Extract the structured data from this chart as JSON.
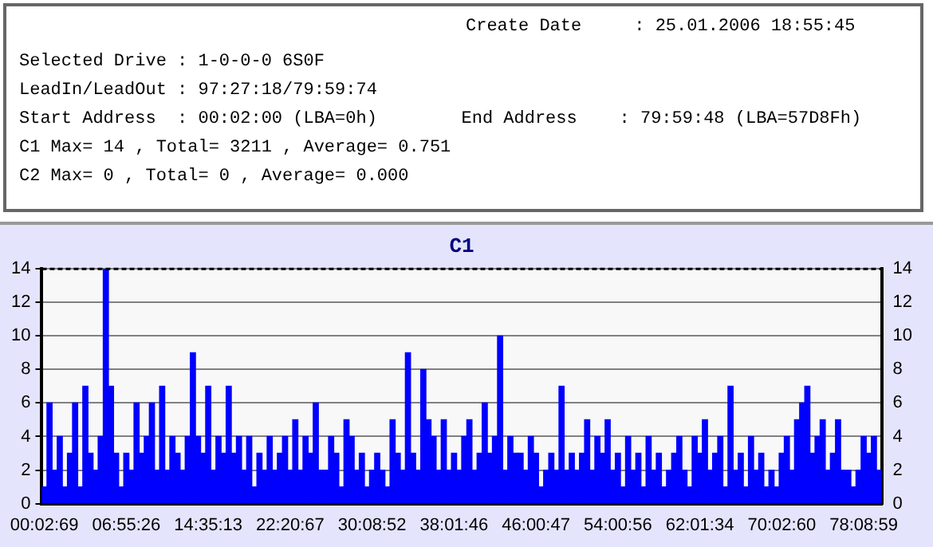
{
  "chart_data": {
    "type": "bar",
    "title": "C1",
    "annotations": [
      "Create Date     : 25.01.2006 18:55:45",
      "Selected Drive : 1-0-0-0 6S0F",
      "LeadIn/LeadOut : 97:27:18/79:59:74",
      "Start Address  : 00:02:00 (LBA=0h)        End Address    : 79:59:48 (LBA=57D8Fh)",
      "C1 Max= 14 , Total= 3211 , Average= 0.751",
      "C2 Max= 0 , Total= 0 , Average= 0.000"
    ],
    "categories": [
      "00:02:69",
      null,
      null,
      null,
      null,
      null,
      null,
      null,
      null,
      null,
      null,
      null,
      null,
      null,
      null,
      null,
      "06:55:26",
      null,
      null,
      null,
      null,
      null,
      null,
      null,
      null,
      null,
      null,
      null,
      null,
      null,
      null,
      null,
      "14:35:13",
      null,
      null,
      null,
      null,
      null,
      null,
      null,
      null,
      null,
      null,
      null,
      null,
      null,
      null,
      null,
      "22:20:67",
      null,
      null,
      null,
      null,
      null,
      null,
      null,
      null,
      null,
      null,
      null,
      null,
      null,
      null,
      null,
      "30:08:52",
      null,
      null,
      null,
      null,
      null,
      null,
      null,
      null,
      null,
      null,
      null,
      null,
      null,
      null,
      null,
      "38:01:46",
      null,
      null,
      null,
      null,
      null,
      null,
      null,
      null,
      null,
      null,
      null,
      null,
      null,
      null,
      null,
      "46:00:47",
      null,
      null,
      null,
      null,
      null,
      null,
      null,
      null,
      null,
      null,
      null,
      null,
      null,
      null,
      null,
      "54:00:56",
      null,
      null,
      null,
      null,
      null,
      null,
      null,
      null,
      null,
      null,
      null,
      null,
      null,
      null,
      null,
      "62:01:34",
      null,
      null,
      null,
      null,
      null,
      null,
      null,
      null,
      null,
      null,
      null,
      null,
      null,
      null,
      null,
      "70:02:60",
      null,
      null,
      null,
      null,
      null,
      null,
      null,
      null,
      null,
      null,
      null,
      null,
      null,
      null,
      null,
      "78:08:59",
      null,
      null,
      null
    ],
    "values": [
      1,
      6,
      2,
      4,
      1,
      3,
      6,
      1,
      7,
      3,
      2,
      4,
      14,
      7,
      3,
      1,
      3,
      2,
      6,
      3,
      4,
      6,
      2,
      7,
      2,
      4,
      3,
      2,
      4,
      9,
      4,
      3,
      7,
      2,
      4,
      3,
      7,
      3,
      4,
      2,
      4,
      1,
      3,
      2,
      4,
      2,
      3,
      4,
      2,
      5,
      2,
      4,
      3,
      6,
      2,
      2,
      4,
      3,
      1,
      5,
      4,
      2,
      3,
      1,
      2,
      3,
      2,
      1,
      5,
      3,
      2,
      9,
      3,
      2,
      8,
      5,
      4,
      2,
      5,
      2,
      3,
      2,
      4,
      5,
      2,
      3,
      6,
      3,
      4,
      10,
      2,
      4,
      3,
      3,
      2,
      4,
      3,
      1,
      2,
      3,
      2,
      7,
      2,
      3,
      2,
      3,
      5,
      2,
      4,
      3,
      5,
      2,
      3,
      1,
      4,
      2,
      3,
      1,
      4,
      2,
      3,
      1,
      2,
      3,
      4,
      2,
      1,
      4,
      3,
      5,
      2,
      3,
      4,
      1,
      7,
      2,
      3,
      1,
      4,
      2,
      3,
      1,
      2,
      1,
      3,
      4,
      2,
      5,
      6,
      7,
      3,
      4,
      5,
      2,
      3,
      5,
      2,
      2,
      1,
      2,
      4,
      3,
      4,
      2
    ],
    "color": "#0000ff",
    "ylim": [
      0,
      14
    ],
    "yticks": [
      0,
      2,
      4,
      6,
      8,
      10,
      12,
      14
    ],
    "y2lim": [
      0,
      14
    ],
    "y2ticks": [
      0,
      2,
      4,
      6,
      8,
      10,
      12,
      14
    ],
    "grid": "y"
  }
}
